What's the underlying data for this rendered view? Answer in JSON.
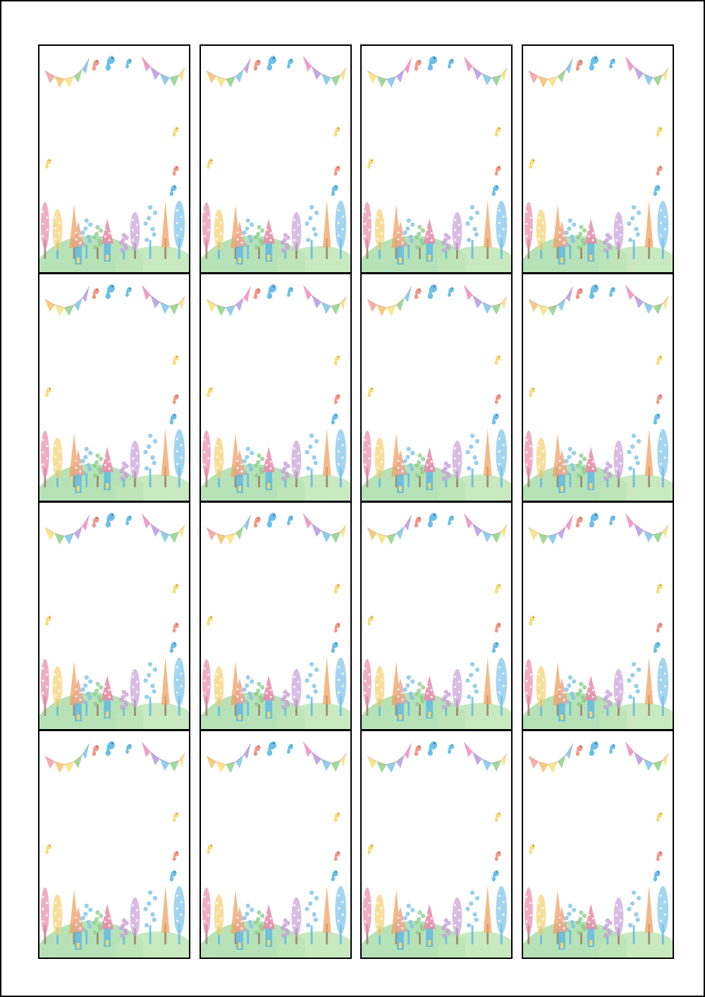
{
  "sheet": {
    "rows": 4,
    "columns": 4,
    "card_count": 16,
    "card_illustration": "watercolor-forest-card"
  },
  "palette": {
    "background": "#ffffff",
    "border": "#000000",
    "pennants": [
      "#f2a0a0",
      "#f5c16c",
      "#f6e27a",
      "#8fd18a",
      "#7ec3e8",
      "#b59ae0",
      "#f08cc0"
    ],
    "birds": [
      "#5bb8e6",
      "#f08c7a",
      "#f6d86a"
    ],
    "trees": [
      "#f0a15e",
      "#e88aa8",
      "#7ec3e8",
      "#c9a0d8",
      "#f4d06f",
      "#8fcf88",
      "#e6534f"
    ],
    "hill": "#9fd8a0",
    "house": [
      "#e6534f",
      "#5bb8e6",
      "#f6d86a"
    ]
  },
  "icons": [
    "bunting-garland-icon",
    "bird-icon",
    "tree-icon",
    "mushroom-house-icon",
    "hill-icon"
  ]
}
